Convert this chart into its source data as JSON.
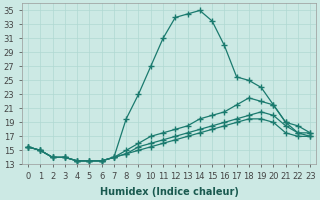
{
  "xlabel": "Humidex (Indice chaleur)",
  "ylabel": "",
  "xlim": [
    -0.5,
    23.5
  ],
  "ylim": [
    13,
    36
  ],
  "xticks": [
    0,
    1,
    2,
    3,
    4,
    5,
    6,
    7,
    8,
    9,
    10,
    11,
    12,
    13,
    14,
    15,
    16,
    17,
    18,
    19,
    20,
    21,
    22,
    23
  ],
  "yticks": [
    13,
    15,
    17,
    19,
    21,
    23,
    25,
    27,
    29,
    31,
    33,
    35
  ],
  "background_color": "#cce9e4",
  "grid_color": "#b0d8d2",
  "line_color": "#1a7a6e",
  "lines": [
    {
      "x": [
        0,
        1,
        2,
        3,
        4,
        5,
        6,
        7,
        8,
        9,
        10,
        11,
        12,
        13,
        14,
        15,
        16,
        17,
        18,
        19,
        20,
        21,
        22,
        23
      ],
      "y": [
        15.5,
        15.0,
        14.0,
        14.0,
        13.5,
        13.5,
        13.5,
        14.0,
        19.5,
        23.0,
        27.0,
        31.0,
        34.0,
        34.5,
        35.0,
        33.5,
        30.0,
        25.5,
        25.0,
        24.0,
        21.5,
        19.0,
        17.5,
        17.5
      ]
    },
    {
      "x": [
        0,
        1,
        2,
        3,
        4,
        5,
        6,
        7,
        8,
        9,
        10,
        11,
        12,
        13,
        14,
        15,
        16,
        17,
        18,
        19,
        20,
        21,
        22,
        23
      ],
      "y": [
        15.5,
        15.0,
        14.0,
        14.0,
        13.5,
        13.5,
        13.5,
        14.0,
        15.0,
        16.0,
        17.0,
        17.5,
        18.0,
        18.5,
        19.5,
        20.0,
        20.5,
        21.5,
        22.5,
        22.0,
        21.5,
        19.0,
        18.5,
        17.5
      ]
    },
    {
      "x": [
        0,
        1,
        2,
        3,
        4,
        5,
        6,
        7,
        8,
        9,
        10,
        11,
        12,
        13,
        14,
        15,
        16,
        17,
        18,
        19,
        20,
        21,
        22,
        23
      ],
      "y": [
        15.5,
        15.0,
        14.0,
        14.0,
        13.5,
        13.5,
        13.5,
        14.0,
        14.5,
        15.5,
        16.0,
        16.5,
        17.0,
        17.5,
        18.0,
        18.5,
        19.0,
        19.5,
        20.0,
        20.5,
        20.0,
        18.5,
        17.5,
        17.0
      ]
    },
    {
      "x": [
        0,
        1,
        2,
        3,
        4,
        5,
        6,
        7,
        8,
        9,
        10,
        11,
        12,
        13,
        14,
        15,
        16,
        17,
        18,
        19,
        20,
        21,
        22,
        23
      ],
      "y": [
        15.5,
        15.0,
        14.0,
        14.0,
        13.5,
        13.5,
        13.5,
        14.0,
        14.5,
        15.0,
        15.5,
        16.0,
        16.5,
        17.0,
        17.5,
        18.0,
        18.5,
        19.0,
        19.5,
        19.5,
        19.0,
        17.5,
        17.0,
        17.0
      ]
    }
  ],
  "marker": "+",
  "markersize": 4,
  "markeredgewidth": 1.0,
  "linewidth": 0.9,
  "tick_fontsize": 6,
  "label_fontsize": 7,
  "tick_color": "#444444",
  "xlabel_color": "#1a5a50",
  "xlabel_fontweight": "bold"
}
